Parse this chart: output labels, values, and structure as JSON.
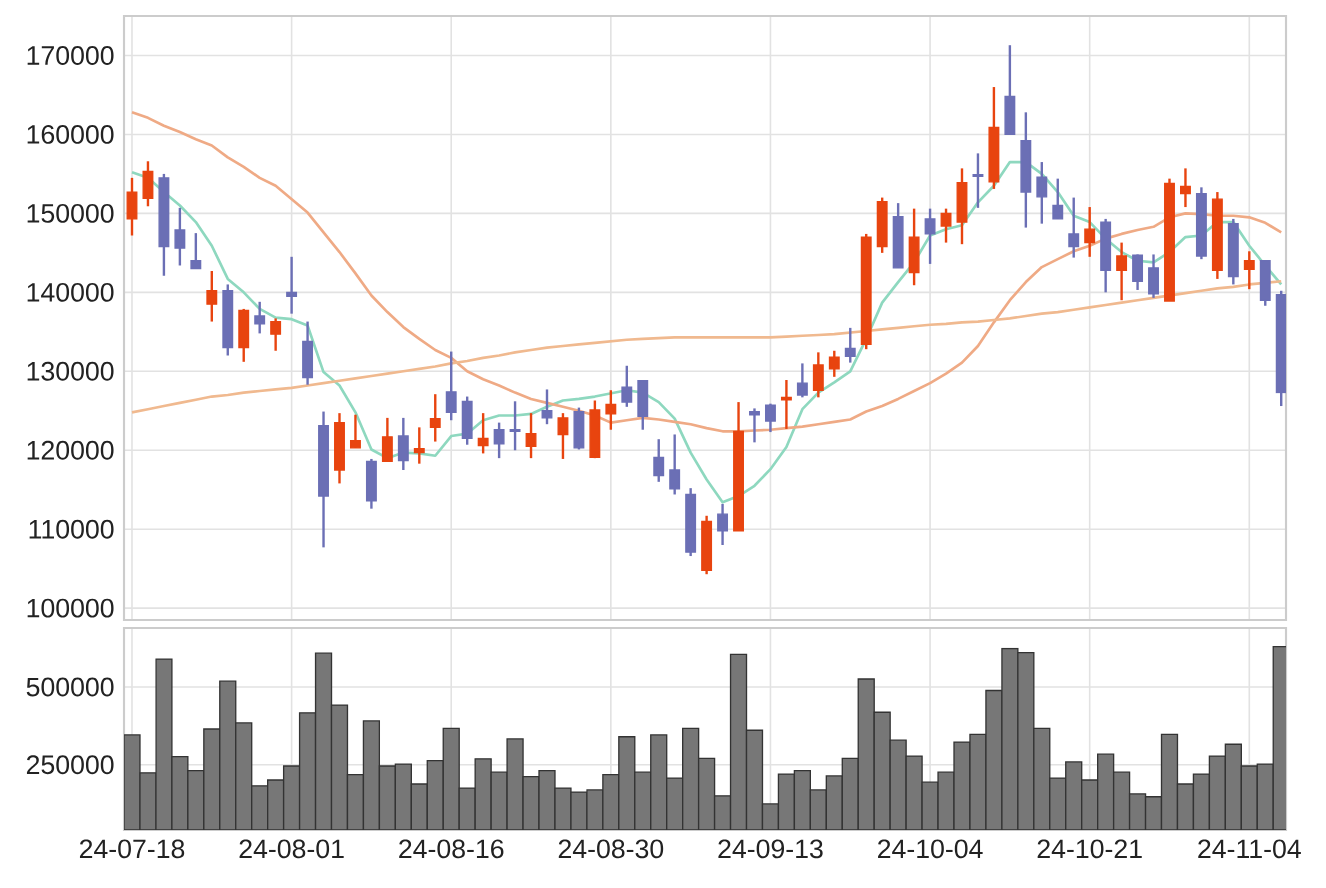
{
  "chart_data": [
    {
      "type": "candlestick",
      "categories": [
        null,
        null,
        null,
        null,
        null,
        null,
        null,
        null,
        null,
        null,
        null,
        null,
        null,
        null,
        null,
        null,
        null,
        null,
        null,
        null,
        null,
        null,
        null,
        null,
        null,
        null,
        null,
        null,
        null,
        null,
        null,
        null,
        null,
        null,
        null,
        null,
        null,
        null,
        null,
        null,
        null,
        null,
        null,
        null,
        null,
        null,
        null,
        null,
        null,
        null,
        null,
        null,
        null,
        null,
        null,
        null,
        null,
        null,
        null,
        null,
        null,
        null,
        null,
        null,
        null,
        null,
        null,
        null,
        null,
        null,
        null,
        null,
        null
      ],
      "ohlc": [
        [
          149300,
          154500,
          147200,
          152700
        ],
        [
          151900,
          156600,
          150900,
          155300
        ],
        [
          154500,
          155000,
          142100,
          145800
        ],
        [
          147900,
          150700,
          143400,
          145600
        ],
        [
          144000,
          147500,
          143000,
          143000
        ],
        [
          138500,
          142700,
          136300,
          140200
        ],
        [
          140200,
          141000,
          132000,
          133000
        ],
        [
          133000,
          137900,
          131200,
          137700
        ],
        [
          137000,
          138800,
          134800,
          136000
        ],
        [
          134700,
          136700,
          132600,
          136300
        ],
        [
          140000,
          144500,
          137300,
          139500
        ],
        [
          133800,
          136300,
          128300,
          129200
        ],
        [
          123100,
          124900,
          107700,
          114200
        ],
        [
          117500,
          124700,
          115800,
          123500
        ],
        [
          120300,
          124500,
          120300,
          121200
        ],
        [
          118600,
          118900,
          112600,
          113600
        ],
        [
          118600,
          124100,
          118600,
          121700
        ],
        [
          121800,
          124100,
          117500,
          118700
        ],
        [
          119700,
          122900,
          118300,
          120200
        ],
        [
          122900,
          127100,
          121100,
          124000
        ],
        [
          127400,
          132500,
          123800,
          124800
        ],
        [
          126200,
          126800,
          120700,
          121500
        ],
        [
          120600,
          124700,
          119600,
          121500
        ],
        [
          122600,
          123500,
          119000,
          120800
        ],
        [
          122600,
          126200,
          120000,
          122400
        ],
        [
          120500,
          124700,
          119000,
          122100
        ],
        [
          125000,
          127700,
          123300,
          124100
        ],
        [
          122000,
          124700,
          118900,
          124100
        ],
        [
          124900,
          125400,
          120100,
          120300
        ],
        [
          119100,
          126300,
          119000,
          125100
        ],
        [
          124600,
          127600,
          122600,
          125800
        ],
        [
          128000,
          130700,
          125500,
          126100
        ],
        [
          128800,
          128800,
          122600,
          124300
        ],
        [
          119100,
          121400,
          116000,
          116800
        ],
        [
          117500,
          122000,
          114400,
          115100
        ],
        [
          114400,
          115200,
          106600,
          107100
        ],
        [
          104800,
          111700,
          104300,
          111000
        ],
        [
          111900,
          113200,
          108000,
          109800
        ],
        [
          109800,
          126100,
          109800,
          122400
        ],
        [
          124900,
          125300,
          121000,
          124500
        ],
        [
          125700,
          125900,
          122300,
          123700
        ],
        [
          126400,
          128900,
          122700,
          126700
        ],
        [
          128500,
          131000,
          126700,
          127000
        ],
        [
          127600,
          132400,
          126700,
          130800
        ],
        [
          130300,
          132600,
          129300,
          131800
        ],
        [
          132900,
          135500,
          131100,
          131900
        ],
        [
          133400,
          147400,
          132800,
          147000
        ],
        [
          145800,
          152000,
          145000,
          151500
        ],
        [
          149600,
          151300,
          143100,
          143100
        ],
        [
          142500,
          150600,
          140900,
          147000
        ],
        [
          149300,
          150600,
          143600,
          147400
        ],
        [
          148400,
          150600,
          146300,
          150000
        ],
        [
          148900,
          155700,
          146100,
          153900
        ],
        [
          154900,
          157600,
          150700,
          154700
        ],
        [
          154000,
          166000,
          153100,
          160900
        ],
        [
          164800,
          171300,
          160000,
          160000
        ],
        [
          159200,
          162800,
          148200,
          152700
        ],
        [
          154600,
          156500,
          148700,
          152100
        ],
        [
          151000,
          154400,
          149300,
          149300
        ],
        [
          147400,
          152000,
          144400,
          145800
        ],
        [
          146300,
          150800,
          144500,
          148000
        ],
        [
          148900,
          149300,
          140000,
          142800
        ],
        [
          142800,
          146300,
          139000,
          144600
        ],
        [
          144700,
          144800,
          140300,
          141400
        ],
        [
          143100,
          144800,
          139300,
          139800
        ],
        [
          138900,
          154400,
          138900,
          153800
        ],
        [
          152500,
          155700,
          150800,
          153400
        ],
        [
          152500,
          153300,
          144200,
          144600
        ],
        [
          142800,
          152700,
          141700,
          151800
        ],
        [
          148700,
          149300,
          141000,
          142000
        ],
        [
          142900,
          145200,
          140400,
          144000
        ],
        [
          144000,
          144000,
          138300,
          139000
        ],
        [
          139700,
          140200,
          125600,
          127300
        ]
      ],
      "colors": [
        "#e8440f",
        "#e8440f",
        "#6b6fb5",
        "#6b6fb5",
        "#6b6fb5",
        "#e8440f",
        "#6b6fb5",
        "#e8440f",
        "#6b6fb5",
        "#e8440f",
        "#6b6fb5",
        "#6b6fb5",
        "#6b6fb5",
        "#e8440f",
        "#e8440f",
        "#6b6fb5",
        "#e8440f",
        "#6b6fb5",
        "#e8440f",
        "#e8440f",
        "#6b6fb5",
        "#6b6fb5",
        "#e8440f",
        "#6b6fb5",
        "#6b6fb5",
        "#e8440f",
        "#6b6fb5",
        "#e8440f",
        "#6b6fb5",
        "#e8440f",
        "#e8440f",
        "#6b6fb5",
        "#6b6fb5",
        "#6b6fb5",
        "#6b6fb5",
        "#6b6fb5",
        "#e8440f",
        "#6b6fb5",
        "#e8440f",
        "#6b6fb5",
        "#6b6fb5",
        "#e8440f",
        "#6b6fb5",
        "#e8440f",
        "#e8440f",
        "#6b6fb5",
        "#e8440f",
        "#e8440f",
        "#6b6fb5",
        "#e8440f",
        "#6b6fb5",
        "#e8440f",
        "#e8440f",
        "#6b6fb5",
        "#e8440f",
        "#6b6fb5",
        "#6b6fb5",
        "#6b6fb5",
        "#6b6fb5",
        "#6b6fb5",
        "#e8440f",
        "#6b6fb5",
        "#e8440f",
        "#6b6fb5",
        "#6b6fb5",
        "#e8440f",
        "#e8440f",
        "#6b6fb5",
        "#e8440f",
        "#6b6fb5",
        "#e8440f",
        "#6b6fb5",
        "#6b6fb5"
      ],
      "series": [
        {
          "type": "line",
          "color": "#8ed8bf",
          "values": [
            155200,
            154500,
            152700,
            151000,
            148900,
            145900,
            141700,
            140000,
            137900,
            136800,
            136600,
            135800,
            129900,
            128200,
            124800,
            120100,
            119000,
            119700,
            119600,
            119300,
            121800,
            122100,
            123800,
            124400,
            124400,
            124600,
            125500,
            126300,
            126500,
            126800,
            127200,
            127600,
            127300,
            126100,
            124000,
            119700,
            116300,
            113400,
            114200,
            115500,
            117600,
            120400,
            125200,
            127300,
            128600,
            130000,
            134100,
            138700,
            141300,
            143800,
            147200,
            148000,
            148500,
            151400,
            153500,
            156500,
            156500,
            155000,
            152700,
            149700,
            148900,
            146800,
            145100,
            144000,
            143800,
            145100,
            147000,
            147200,
            148900,
            148900,
            145900,
            143400,
            141000
          ]
        },
        {
          "type": "line",
          "color": "#efaa85",
          "values": [
            162800,
            162100,
            161100,
            160300,
            159400,
            158600,
            157100,
            155900,
            154500,
            153500,
            151800,
            150100,
            147600,
            145100,
            142400,
            139600,
            137500,
            135600,
            134100,
            132700,
            131700,
            130000,
            129000,
            128200,
            127300,
            126500,
            126000,
            125500,
            125000,
            124400,
            123500,
            123800,
            124100,
            123900,
            123600,
            123300,
            122800,
            122400,
            122400,
            122500,
            122600,
            122800,
            123000,
            123300,
            123600,
            123900,
            124900,
            125600,
            126500,
            127500,
            128500,
            129700,
            131100,
            133200,
            136200,
            139000,
            141300,
            143200,
            144200,
            145200,
            145900,
            146800,
            147400,
            147900,
            148300,
            149500,
            150000,
            149900,
            149700,
            149700,
            149500,
            148800,
            147600
          ]
        },
        {
          "type": "line",
          "color": "#f0b98f",
          "values": [
            124800,
            125200,
            125600,
            126000,
            126400,
            126800,
            127000,
            127300,
            127500,
            127700,
            127900,
            128200,
            128500,
            128800,
            129100,
            129400,
            129700,
            130000,
            130300,
            130600,
            131000,
            131300,
            131700,
            132000,
            132400,
            132700,
            133000,
            133200,
            133400,
            133600,
            133800,
            134000,
            134100,
            134200,
            134300,
            134300,
            134300,
            134300,
            134300,
            134300,
            134300,
            134400,
            134500,
            134600,
            134700,
            134900,
            135100,
            135300,
            135500,
            135700,
            135900,
            136000,
            136200,
            136300,
            136500,
            136700,
            137000,
            137300,
            137500,
            137800,
            138100,
            138400,
            138700,
            139000,
            139300,
            139600,
            139900,
            140200,
            140500,
            140700,
            141000,
            141200,
            141400
          ]
        }
      ],
      "ylim": [
        98500,
        175000
      ],
      "yticks": [
        100000,
        110000,
        120000,
        130000,
        140000,
        150000,
        160000,
        170000
      ],
      "grid": true,
      "tick_labels": "y"
    },
    {
      "type": "bar",
      "categories": [
        "24-07-18",
        null,
        null,
        null,
        null,
        null,
        null,
        null,
        null,
        null,
        "24-08-01",
        null,
        null,
        null,
        null,
        null,
        null,
        null,
        null,
        null,
        "24-08-16",
        null,
        null,
        null,
        null,
        null,
        null,
        null,
        null,
        null,
        "24-08-30",
        null,
        null,
        null,
        null,
        null,
        null,
        null,
        null,
        null,
        "24-09-13",
        null,
        null,
        null,
        null,
        null,
        null,
        null,
        null,
        null,
        "24-10-04",
        null,
        null,
        null,
        null,
        null,
        null,
        null,
        null,
        null,
        "24-10-21",
        null,
        null,
        null,
        null,
        null,
        null,
        null,
        null,
        null,
        "24-11-04",
        null,
        null
      ],
      "values": [
        346000,
        224000,
        590000,
        276000,
        231000,
        365000,
        519000,
        385000,
        182000,
        201000,
        246000,
        417000,
        609000,
        442000,
        218000,
        391000,
        246000,
        252000,
        188000,
        263000,
        367000,
        175000,
        269000,
        226000,
        333000,
        212000,
        231000,
        175000,
        162000,
        169000,
        218000,
        340000,
        226000,
        346000,
        207000,
        367000,
        271000,
        150000,
        605000,
        361000,
        124000,
        220000,
        231000,
        169000,
        214000,
        271000,
        526000,
        419000,
        329000,
        278000,
        194000,
        226000,
        323000,
        348000,
        489000,
        624000,
        611000,
        367000,
        207000,
        259000,
        201000,
        284000,
        226000,
        156000,
        147000,
        348000,
        188000,
        220000,
        278000,
        316000,
        246000,
        252000,
        630000
      ],
      "color": "#777777",
      "ylim": [
        40000,
        690000
      ],
      "yticks": [
        250000,
        500000
      ],
      "grid": true
    }
  ]
}
